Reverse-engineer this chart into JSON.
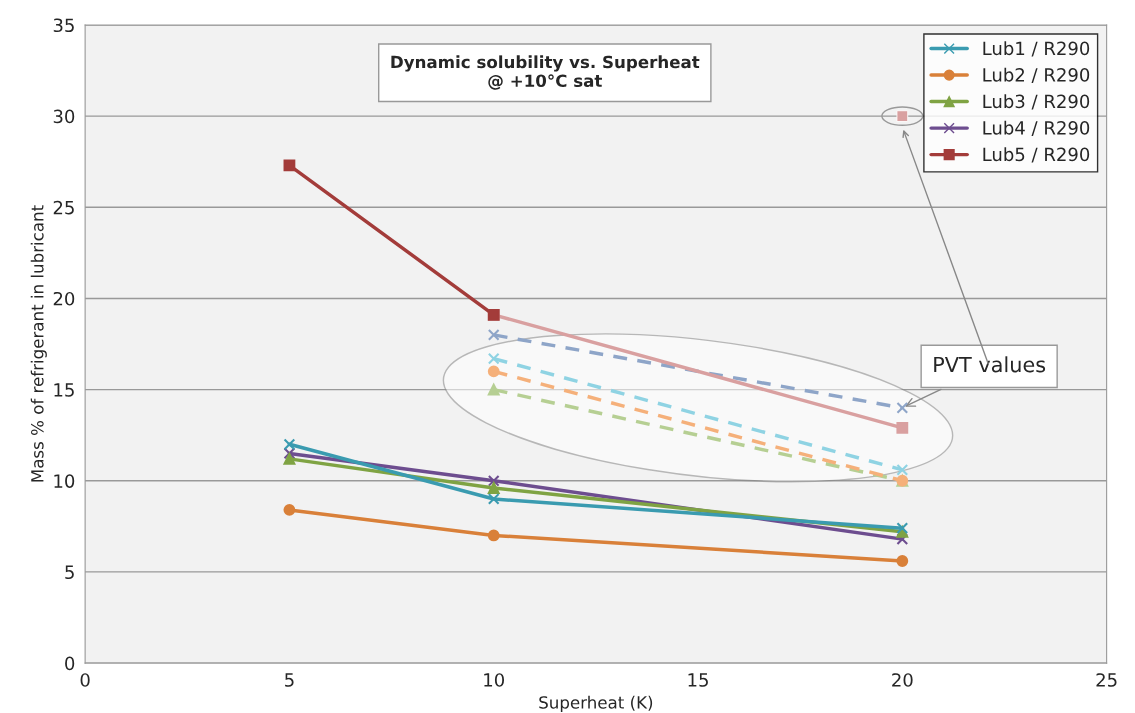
{
  "chart_data": {
    "type": "line",
    "title": "Dynamic solubility vs. Superheat\n@ +10°C sat",
    "xlabel": "Superheat (K)",
    "ylabel": "Mass % of refrigerant in lubricant",
    "x": [
      5,
      10,
      20
    ],
    "xlim": [
      0,
      25
    ],
    "xticks": [
      0,
      5,
      10,
      15,
      20,
      25
    ],
    "ylim": [
      0,
      35
    ],
    "yticks": [
      0,
      5,
      10,
      15,
      20,
      25,
      30,
      35
    ],
    "grid": "y",
    "legend": "top right",
    "annotations": [
      {
        "text": "PVT values",
        "x": 20,
        "y": 14
      }
    ],
    "series": [
      {
        "name": "Lub1 / R290",
        "color": "#3a9bb0",
        "marker": "cross",
        "values": [
          12.0,
          9.0,
          7.4
        ]
      },
      {
        "name": "Lub2 / R290",
        "color": "#d98039",
        "marker": "circle",
        "values": [
          8.4,
          7.0,
          5.6
        ]
      },
      {
        "name": "Lub3 / R290",
        "color": "#7fa343",
        "marker": "triangle",
        "values": [
          11.2,
          9.6,
          7.2
        ]
      },
      {
        "name": "Lub4 / R290",
        "color": "#6d4d8f",
        "marker": "cross",
        "values": [
          11.5,
          10.0,
          6.8
        ]
      },
      {
        "name": "Lub5 / R290",
        "color": "#a33c3a",
        "marker": "square",
        "x": [
          5,
          10
        ],
        "values": [
          27.3,
          19.1
        ]
      },
      {
        "color": "#d9a0a0",
        "marker": "square",
        "x": [
          10,
          20
        ],
        "values": [
          19.1,
          12.9
        ]
      },
      {
        "color": "#8fd3e3",
        "marker": "cross",
        "line_style": "dashed",
        "x": [
          10,
          20
        ],
        "values": [
          16.7,
          10.6
        ]
      },
      {
        "color": "#f5b07a",
        "marker": "circle",
        "line_style": "dashed",
        "x": [
          10,
          20
        ],
        "values": [
          16.0,
          10.0
        ]
      },
      {
        "color": "#b6cf93",
        "marker": "triangle",
        "line_style": "dashed",
        "x": [
          10,
          20
        ],
        "values": [
          15.0,
          10.0
        ]
      },
      {
        "color": "#8ea5c8",
        "marker": "cross",
        "line_style": "dashed",
        "x": [
          10,
          20
        ],
        "values": [
          18.0,
          14.0
        ]
      },
      {
        "color": "#d9a0a0",
        "marker": "square",
        "type": "scatter",
        "x": [
          20
        ],
        "values": [
          30.0
        ]
      }
    ]
  }
}
